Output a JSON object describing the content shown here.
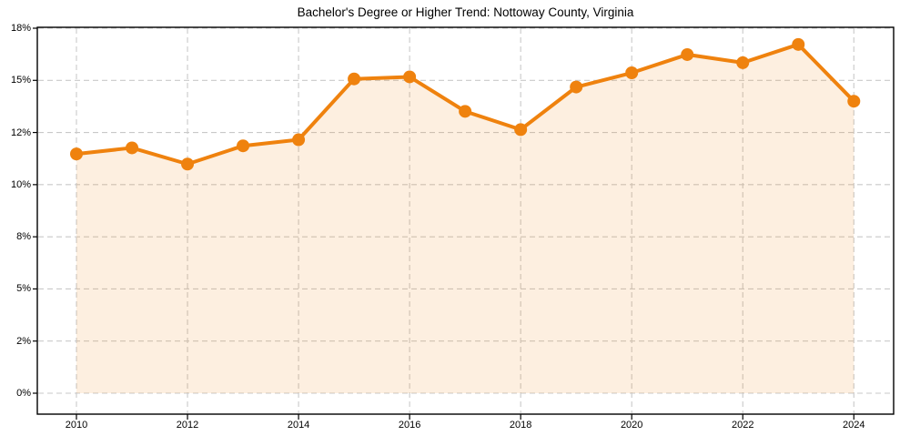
{
  "chart_data": {
    "type": "line",
    "title": "Bachelor's Degree or Higher Trend: Nottoway County, Virginia",
    "series_name": "Bachelor's Degree or Higher (%)",
    "x": [
      2010,
      2011,
      2012,
      2013,
      2014,
      2015,
      2016,
      2017,
      2018,
      2019,
      2020,
      2021,
      2022,
      2023,
      2024
    ],
    "values": [
      11.8,
      12.1,
      11.3,
      12.2,
      12.5,
      15.5,
      15.6,
      13.9,
      13.0,
      15.1,
      15.8,
      16.7,
      16.3,
      17.2,
      14.4
    ],
    "xlabel": "",
    "ylabel": "",
    "ylim": [
      0,
      18
    ],
    "xtick_labels": [
      "2010",
      "2012",
      "2014",
      "2016",
      "2018",
      "2020",
      "2022",
      "2024"
    ],
    "ytick_labels_bottom_to_top": [
      "0%",
      "2%",
      "5%",
      "8%",
      "10%",
      "12%",
      "15%",
      "18%"
    ],
    "ytick_layout": "uniformly spaced gridlines",
    "grid": "dashed, both axes",
    "legend": "none",
    "area_fill": true,
    "marker": "filled circle",
    "colors": {
      "line": "#ef820e",
      "marker": "#ef820e",
      "area_fill": "rgba(239,130,14,0.13)",
      "grid": "#c9c9c9",
      "spine": "#000000",
      "text": "#000000",
      "background": "#ffffff"
    }
  }
}
